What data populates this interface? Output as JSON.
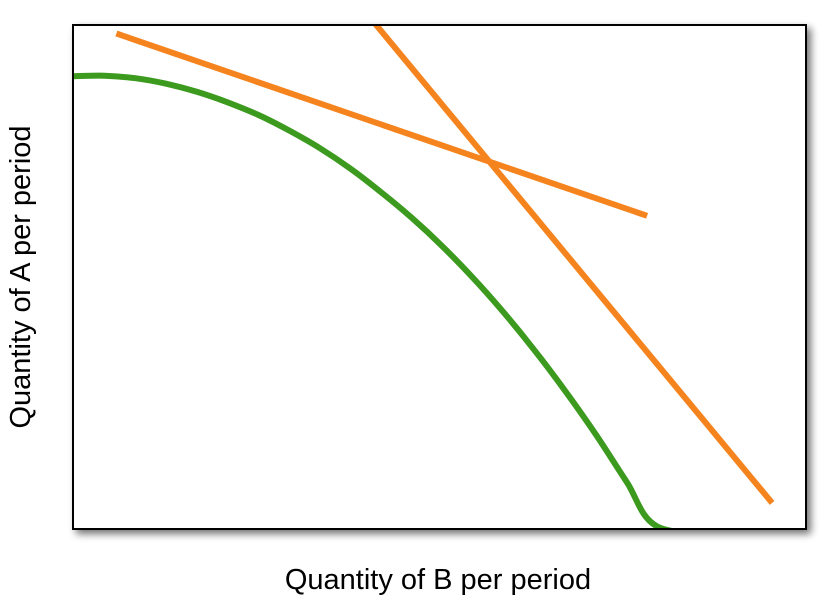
{
  "chart_data": {
    "type": "line",
    "title": "",
    "xlabel": "Quantity of B per period",
    "ylabel": "Quantity of A per period",
    "xlim": [
      0,
      100
    ],
    "ylim": [
      0,
      100
    ],
    "grid": false,
    "axis_ticks": false,
    "series": [
      {
        "role": "curve",
        "color": "#3c9a1e",
        "points": [
          [
            0,
            90
          ],
          [
            4.2,
            90.1
          ],
          [
            8.4,
            89.6
          ],
          [
            12.6,
            88.5
          ],
          [
            16.8,
            86.9
          ],
          [
            21.0,
            84.8
          ],
          [
            25.2,
            82.3
          ],
          [
            29.4,
            79.2
          ],
          [
            33.6,
            75.7
          ],
          [
            37.8,
            71.6
          ],
          [
            42.0,
            66.9
          ],
          [
            46.2,
            61.8
          ],
          [
            50.4,
            56.1
          ],
          [
            54.6,
            49.8
          ],
          [
            58.8,
            42.9
          ],
          [
            63.0,
            35.4
          ],
          [
            67.2,
            27.3
          ],
          [
            71.4,
            18.6
          ],
          [
            75.6,
            9.2
          ],
          [
            79.8,
            0.3
          ],
          [
            89.6,
            -1.4
          ]
        ]
      },
      {
        "role": "line",
        "color": "#f5841f",
        "points": [
          [
            5.8,
            98.5
          ],
          [
            78.4,
            62.2
          ]
        ]
      },
      {
        "role": "line",
        "color": "#f5841f",
        "points": [
          [
            41.0,
            100.8
          ],
          [
            95.5,
            5.0
          ]
        ]
      }
    ]
  }
}
